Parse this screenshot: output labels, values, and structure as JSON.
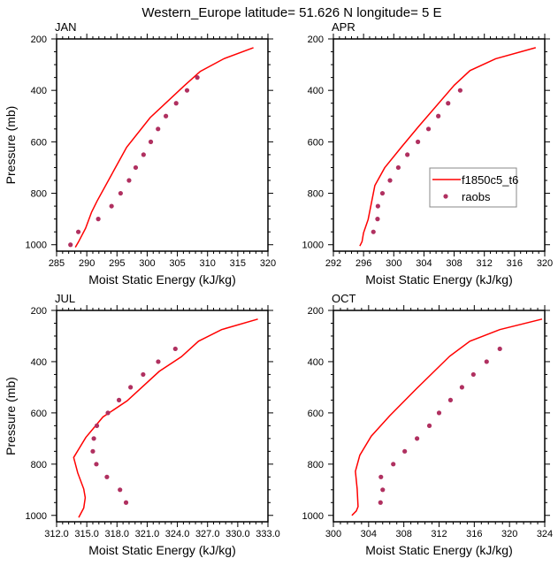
{
  "title": "Western_Europe  latitude= 51.626 N longitude= 5 E",
  "colors": {
    "model": "#ff0000",
    "obs": "#b03060"
  },
  "legend": {
    "placement": "inside-APR-right",
    "entries": [
      "f1850c5_t6",
      "raobs"
    ]
  },
  "chart_data": [
    {
      "type": "line",
      "panel": "JAN",
      "title": "JAN",
      "xlabel": "Moist Static Energy (kJ/kg)",
      "ylabel": "Pressure (mb)",
      "xlim": [
        285,
        320
      ],
      "ylim": [
        1025,
        200
      ],
      "y_reversed": true,
      "xticks": [
        285,
        290,
        295,
        300,
        305,
        310,
        315,
        320
      ],
      "xtick_labels": [
        "285",
        "290",
        "295",
        "300",
        "305",
        "310",
        "315",
        "320"
      ],
      "yticks": [
        200,
        400,
        600,
        800,
        1000
      ],
      "ytick_labels": [
        "200",
        "400",
        "600",
        "800",
        "1000"
      ],
      "series": [
        {
          "name": "f1850c5_t6",
          "kind": "line",
          "x": [
            288.1,
            288.6,
            289.8,
            290.8,
            291.7,
            296.6,
            300.5,
            306.1,
            308.8,
            312.7,
            317.6
          ],
          "y": [
            1010,
            990,
            936,
            873,
            830,
            621,
            506,
            383,
            326,
            277,
            234
          ]
        },
        {
          "name": "raobs",
          "kind": "scatter",
          "x": [
            287.3,
            288.6,
            291.9,
            294.1,
            295.6,
            297.0,
            298.1,
            299.4,
            300.6,
            301.8,
            303.1,
            304.8,
            306.6,
            308.3
          ],
          "y": [
            1000,
            950,
            900,
            850,
            800,
            750,
            700,
            650,
            600,
            550,
            500,
            450,
            400,
            350
          ]
        }
      ]
    },
    {
      "type": "line",
      "panel": "APR",
      "title": "APR",
      "xlabel": "Moist Static Energy (kJ/kg)",
      "ylabel": "",
      "xlim": [
        292,
        320
      ],
      "ylim": [
        1025,
        200
      ],
      "y_reversed": true,
      "xticks": [
        292,
        296,
        300,
        304,
        308,
        312,
        316,
        320
      ],
      "xtick_labels": [
        "292",
        "296",
        "300",
        "304",
        "308",
        "312",
        "316",
        "320"
      ],
      "yticks": [
        200,
        400,
        600,
        800,
        1000
      ],
      "ytick_labels": [
        "200",
        "400",
        "600",
        "800",
        "1000"
      ],
      "series": [
        {
          "name": "f1850c5_t6",
          "kind": "line",
          "x": [
            295.5,
            295.8,
            296.0,
            296.6,
            297.5,
            298.8,
            301.0,
            303.3,
            308.0,
            310.1,
            313.5,
            318.8
          ],
          "y": [
            1005,
            988,
            954,
            902,
            770,
            701,
            621,
            540,
            380,
            323,
            277,
            234
          ]
        },
        {
          "name": "raobs",
          "kind": "scatter",
          "x": [
            297.3,
            297.85,
            297.9,
            298.5,
            299.5,
            300.6,
            301.8,
            303.2,
            304.6,
            305.9,
            307.2,
            308.8
          ],
          "y": [
            950,
            900,
            850,
            800,
            750,
            700,
            650,
            600,
            550,
            500,
            450,
            400
          ]
        }
      ]
    },
    {
      "type": "line",
      "panel": "JUL",
      "title": "JUL",
      "xlabel": "Moist Static Energy (kJ/kg)",
      "ylabel": "Pressure (mb)",
      "xlim": [
        312,
        333
      ],
      "ylim": [
        1025,
        200
      ],
      "y_reversed": true,
      "xticks": [
        312,
        315,
        318,
        321,
        324,
        327,
        330,
        333
      ],
      "xtick_labels": [
        "312.0",
        "315.0",
        "318.0",
        "321.0",
        "324.0",
        "327.0",
        "330.0",
        "333.0"
      ],
      "yticks": [
        200,
        400,
        600,
        800,
        1000
      ],
      "ytick_labels": [
        "200",
        "400",
        "600",
        "800",
        "1000"
      ],
      "series": [
        {
          "name": "f1850c5_t6",
          "kind": "line",
          "x": [
            314.2,
            314.7,
            314.85,
            314.7,
            314.1,
            313.7,
            314.9,
            316.6,
            319.0,
            322.2,
            324.4,
            326.1,
            328.4,
            332.0
          ],
          "y": [
            1008,
            971,
            931,
            897,
            834,
            774,
            696,
            616,
            553,
            438,
            381,
            320,
            275,
            234
          ]
        },
        {
          "name": "raobs",
          "kind": "scatter",
          "x": [
            318.9,
            318.3,
            317.0,
            315.95,
            315.6,
            315.7,
            316.0,
            317.1,
            318.2,
            319.35,
            320.6,
            322.1,
            323.8
          ],
          "y": [
            950,
            900,
            850,
            800,
            750,
            700,
            650,
            600,
            550,
            500,
            450,
            400,
            350
          ]
        }
      ]
    },
    {
      "type": "line",
      "panel": "OCT",
      "title": "OCT",
      "xlabel": "Moist Static Energy (kJ/kg)",
      "ylabel": "",
      "xlim": [
        300,
        324
      ],
      "ylim": [
        1025,
        200
      ],
      "y_reversed": true,
      "xticks": [
        300,
        304,
        308,
        312,
        316,
        320,
        324
      ],
      "xtick_labels": [
        "300",
        "304",
        "308",
        "312",
        "316",
        "320",
        "324"
      ],
      "yticks": [
        200,
        400,
        600,
        800,
        1000
      ],
      "ytick_labels": [
        "200",
        "400",
        "600",
        "800",
        "1000"
      ],
      "series": [
        {
          "name": "f1850c5_t6",
          "kind": "line",
          "x": [
            302.1,
            302.6,
            302.8,
            302.7,
            302.5,
            303.0,
            304.3,
            306.4,
            309.4,
            313.2,
            315.5,
            318.9,
            323.7
          ],
          "y": [
            1000,
            983,
            966,
            897,
            828,
            765,
            691,
            611,
            507,
            379,
            320,
            275,
            234
          ]
        },
        {
          "name": "raobs",
          "kind": "scatter",
          "x": [
            305.35,
            305.6,
            305.4,
            306.8,
            308.1,
            309.5,
            310.9,
            312.0,
            313.3,
            314.6,
            315.9,
            317.4,
            318.9
          ],
          "y": [
            950,
            900,
            850,
            800,
            750,
            700,
            650,
            600,
            550,
            500,
            450,
            400,
            350
          ]
        }
      ]
    }
  ]
}
